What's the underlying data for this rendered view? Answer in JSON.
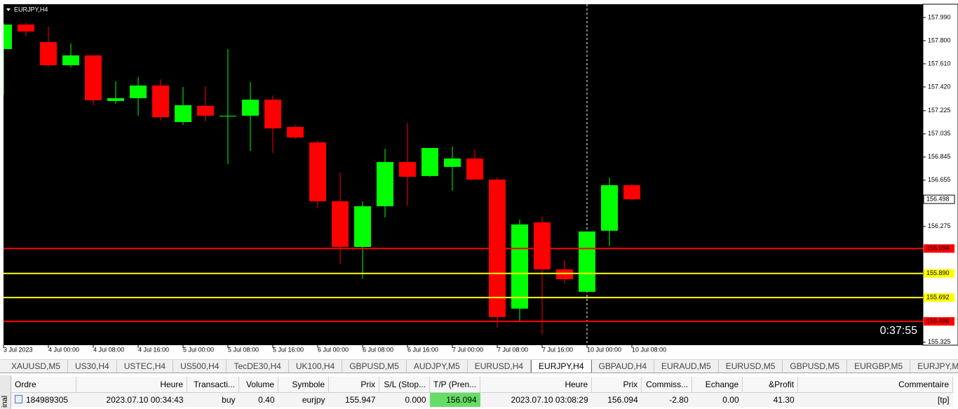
{
  "chart_data": {
    "type": "candlestick",
    "symbol_label": "EURJPY,H4",
    "categories": [
      "3 Jul 2023",
      null,
      "4 Jul 00:00",
      null,
      "4 Jul 08:00",
      null,
      "4 Jul 16:00",
      null,
      "5 Jul 00:00",
      null,
      "5 Jul 08:00",
      null,
      "5 Jul 16:00",
      null,
      "6 Jul 00:00",
      null,
      "6 Jul 08:00",
      null,
      "6 Jul 16:00",
      null,
      "7 Jul 00:00",
      null,
      "7 Jul 08:00",
      null,
      "7 Jul 16:00",
      null,
      "10 Jul 00:00",
      null,
      "10 Jul 08:00"
    ],
    "open": [
      157.731,
      157.932,
      157.788,
      157.598,
      157.679,
      157.305,
      157.328,
      157.432,
      157.132,
      157.265,
      157.178,
      157.184,
      157.316,
      157.092,
      156.965,
      156.482,
      156.107,
      156.441,
      156.804,
      156.689,
      156.764,
      156.833,
      156.66,
      155.601,
      156.309,
      155.923,
      155.739,
      156.24,
      156.614
    ],
    "high": [
      157.944,
      157.95,
      157.915,
      157.777,
      157.679,
      157.466,
      157.501,
      157.483,
      157.42,
      157.426,
      157.731,
      157.46,
      157.351,
      157.109,
      156.982,
      156.718,
      156.482,
      156.913,
      157.121,
      156.919,
      156.931,
      156.908,
      156.677,
      156.332,
      156.355,
      155.998,
      156.234,
      156.677,
      156.625
    ],
    "low": [
      157.357,
      157.835,
      157.587,
      157.581,
      157.27,
      157.282,
      157.184,
      157.144,
      157.109,
      157.138,
      156.787,
      156.896,
      156.879,
      156.994,
      156.424,
      155.969,
      155.848,
      156.349,
      156.447,
      156.683,
      156.568,
      156.66,
      155.445,
      155.491,
      155.388,
      155.808,
      155.739,
      156.113,
      156.487
    ],
    "close": [
      157.932,
      157.875,
      157.598,
      157.679,
      157.311,
      157.328,
      157.432,
      157.172,
      157.27,
      157.184,
      157.184,
      157.316,
      157.08,
      157.005,
      156.482,
      156.107,
      156.441,
      156.804,
      156.683,
      156.919,
      156.833,
      156.66,
      155.532,
      156.292,
      155.923,
      155.842,
      156.234,
      156.614,
      156.498
    ],
    "up_color": "#00ff00",
    "down_color": "#ff0000",
    "ylim": [
      155.301,
      158.099
    ],
    "yticks": [
      {
        "value": 157.99,
        "label": "157.990"
      },
      {
        "value": 157.8,
        "label": "157.800"
      },
      {
        "value": 157.61,
        "label": "157.610"
      },
      {
        "value": 157.42,
        "label": "157.420"
      },
      157.225,
      157.035,
      156.845,
      156.655,
      156.275,
      155.325
    ],
    "levels": [
      {
        "value": 156.094,
        "color": "#ff0000"
      },
      {
        "value": 155.89,
        "label": "155.890",
        "color": "#ffff00"
      },
      {
        "value": 155.692,
        "color": "#ffff00"
      },
      {
        "value": 155.496,
        "color": "#ff0000"
      }
    ],
    "last_price": 156.498,
    "countdown": "0:37:55"
  },
  "tabs": {
    "items": [
      "XAUUSD,M5",
      "US30,H4",
      "USTEC,H4",
      "US500,H4",
      "TecDE30,H4",
      "UK100,H4",
      "GBPUSD,M5",
      "AUDJPY,M5",
      "EURUSD,H4",
      "EURJPY,H4",
      "GBPAUD,H4",
      "EURAUD,M5",
      "EURUSD,M5",
      "GBPUSD,M5",
      "EURGBP,M5",
      "EURJPY,M5"
    ],
    "active": 9
  },
  "terminal": {
    "side_label": "inal",
    "columns": [
      "Ordre",
      "Heure",
      "Transacti...",
      "Volume",
      "Symbole",
      "Prix",
      "S/L (Stop...",
      "T/P (Pren...",
      "Heure",
      "Prix",
      "Commiss...",
      "Echange",
      "&Profit",
      "Commentaire"
    ],
    "rows": [
      [
        "184989305",
        "2023.07.10 00:34:43",
        "buy",
        "0.40",
        "eurjpy",
        "155.947",
        "0.000",
        "156.094",
        "2023.07.10 03:08:29",
        "156.094",
        "-2.80",
        "0.00",
        "41.30",
        "[tp]"
      ]
    ]
  }
}
